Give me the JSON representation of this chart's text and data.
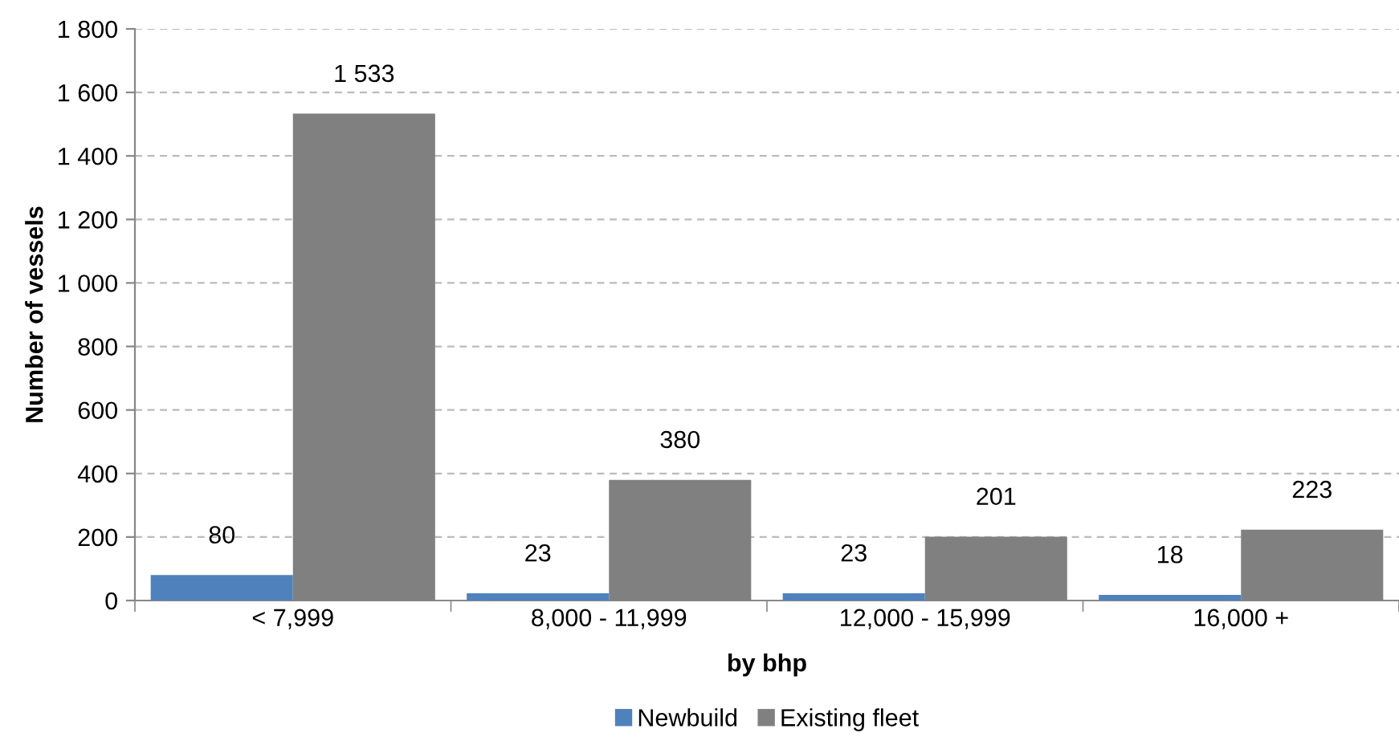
{
  "chart_data": {
    "type": "bar",
    "xlabel": "by bhp",
    "ylabel": "Number of vessels",
    "categories": [
      "< 7,999",
      "8,000 - 11,999",
      "12,000 - 15,999",
      "16,000 +"
    ],
    "series": [
      {
        "name": "Newbuild",
        "color": "#4f81bd",
        "values": [
          80,
          23,
          23,
          18
        ],
        "value_labels": [
          "80",
          "23",
          "23",
          "18"
        ]
      },
      {
        "name": "Existing fleet",
        "color": "#808080",
        "values": [
          1533,
          380,
          201,
          223
        ],
        "value_labels": [
          "1 533",
          "380",
          "201",
          "223"
        ]
      }
    ],
    "ylim": [
      0,
      1800
    ],
    "yticks": [
      0,
      200,
      400,
      600,
      800,
      {
        "value": 1000,
        "label": "1 000"
      },
      {
        "value": 1200,
        "label": "1 200"
      },
      {
        "value": 1400,
        "label": "1 400"
      },
      {
        "value": 1600,
        "label": "1 600"
      },
      {
        "value": 1800,
        "label": "1 800"
      }
    ],
    "grid": "y",
    "legend": "bottom"
  }
}
